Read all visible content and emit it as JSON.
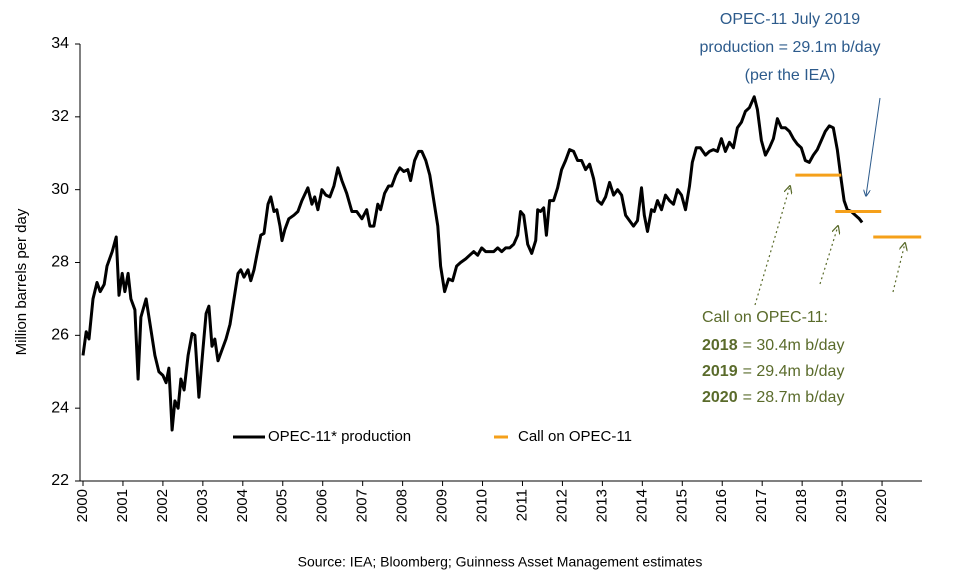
{
  "chart_data": {
    "type": "line",
    "ylabel": "Million barrels per day",
    "source": "Source: IEA; Bloomberg; Guinness Asset Management estimates",
    "xlim": [
      2000,
      2021
    ],
    "xticks": [
      2000,
      2001,
      2002,
      2003,
      2004,
      2005,
      2006,
      2007,
      2008,
      2009,
      2010,
      2011,
      2012,
      2013,
      2014,
      2015,
      2016,
      2017,
      2018,
      2019,
      2020
    ],
    "ylim": [
      22,
      34
    ],
    "yticks": [
      22,
      24,
      26,
      28,
      30,
      32,
      34
    ],
    "legend": "lower center",
    "series": [
      {
        "name": "OPEC-11* production",
        "color": "#000000",
        "x": [
          2000,
          2000.08,
          2000.15,
          2000.25,
          2000.35,
          2000.43,
          2000.53,
          2000.6,
          2000.73,
          2000.83,
          2000.9,
          2000.98,
          2001.05,
          2001.13,
          2001.2,
          2001.3,
          2001.38,
          2001.45,
          2001.58,
          2001.68,
          2001.8,
          2001.9,
          2002,
          2002.08,
          2002.15,
          2002.23,
          2002.3,
          2002.38,
          2002.45,
          2002.53,
          2002.63,
          2002.73,
          2002.8,
          2002.9,
          2003,
          2003.08,
          2003.15,
          2003.23,
          2003.3,
          2003.38,
          2003.48,
          2003.58,
          2003.68,
          2003.78,
          2003.88,
          2003.95,
          2004.03,
          2004.13,
          2004.2,
          2004.28,
          2004.35,
          2004.45,
          2004.53,
          2004.58,
          2004.63,
          2004.7,
          2004.78,
          2004.85,
          2004.93,
          2004.98,
          2005.05,
          2005.15,
          2005.28,
          2005.38,
          2005.48,
          2005.63,
          2005.73,
          2005.8,
          2005.88,
          2005.98,
          2006.08,
          2006.18,
          2006.28,
          2006.38,
          2006.48,
          2006.6,
          2006.73,
          2006.85,
          2006.98,
          2007.1,
          2007.18,
          2007.28,
          2007.38,
          2007.45,
          2007.55,
          2007.65,
          2007.73,
          2007.83,
          2007.93,
          2008.03,
          2008.13,
          2008.2,
          2008.3,
          2008.4,
          2008.48,
          2008.58,
          2008.68,
          2008.78,
          2008.88,
          2008.95,
          2009.05,
          2009.15,
          2009.25,
          2009.35,
          2009.45,
          2009.58,
          2009.68,
          2009.78,
          2009.88,
          2009.98,
          2010.08,
          2010.18,
          2010.28,
          2010.38,
          2010.48,
          2010.58,
          2010.68,
          2010.78,
          2010.88,
          2010.95,
          2011.03,
          2011.13,
          2011.23,
          2011.33,
          2011.38,
          2011.45,
          2011.53,
          2011.6,
          2011.68,
          2011.78,
          2011.88,
          2011.98,
          2012.08,
          2012.18,
          2012.28,
          2012.38,
          2012.48,
          2012.58,
          2012.68,
          2012.78,
          2012.88,
          2012.98,
          2013.08,
          2013.18,
          2013.28,
          2013.38,
          2013.48,
          2013.58,
          2013.68,
          2013.78,
          2013.88,
          2013.98,
          2014.05,
          2014.13,
          2014.23,
          2014.3,
          2014.38,
          2014.48,
          2014.58,
          2014.68,
          2014.78,
          2014.88,
          2014.98,
          2015.08,
          2015.18,
          2015.25,
          2015.35,
          2015.45,
          2015.58,
          2015.68,
          2015.78,
          2015.88,
          2015.98,
          2016.08,
          2016.18,
          2016.28,
          2016.38,
          2016.48,
          2016.58,
          2016.68,
          2016.8,
          2016.88,
          2016.98,
          2017.08,
          2017.18,
          2017.28,
          2017.38,
          2017.48,
          2017.58,
          2017.68,
          2017.78,
          2017.88,
          2017.98,
          2018.08,
          2018.18,
          2018.28,
          2018.38,
          2018.48,
          2018.58,
          2018.68,
          2018.78,
          2018.88,
          2018.98,
          2019.05,
          2019.13,
          2019.23,
          2019.33,
          2019.43,
          2019.5
        ],
        "values": [
          25.45,
          26.1,
          25.9,
          27.0,
          27.45,
          27.2,
          27.4,
          27.9,
          28.3,
          28.7,
          27.1,
          27.7,
          27.2,
          27.7,
          27.0,
          26.7,
          24.8,
          26.5,
          27.0,
          26.3,
          25.45,
          25.0,
          24.9,
          24.7,
          25.1,
          23.4,
          24.2,
          24.0,
          24.8,
          24.5,
          25.45,
          26.05,
          26.0,
          24.3,
          25.6,
          26.6,
          26.8,
          25.7,
          25.9,
          25.3,
          25.6,
          25.9,
          26.3,
          27.0,
          27.7,
          27.8,
          27.6,
          27.8,
          27.5,
          27.8,
          28.2,
          28.75,
          28.8,
          29.2,
          29.6,
          29.8,
          29.4,
          29.45,
          29.0,
          28.6,
          28.9,
          29.2,
          29.3,
          29.4,
          29.7,
          30.05,
          29.6,
          29.8,
          29.45,
          30.0,
          29.85,
          29.8,
          30.1,
          30.6,
          30.25,
          29.9,
          29.4,
          29.4,
          29.2,
          29.45,
          29.0,
          29.0,
          29.6,
          29.45,
          29.9,
          30.1,
          30.1,
          30.4,
          30.6,
          30.5,
          30.55,
          30.25,
          30.8,
          31.05,
          31.05,
          30.8,
          30.4,
          29.7,
          29.0,
          27.9,
          27.2,
          27.55,
          27.5,
          27.9,
          28.0,
          28.1,
          28.2,
          28.3,
          28.2,
          28.4,
          28.3,
          28.3,
          28.3,
          28.4,
          28.3,
          28.4,
          28.4,
          28.5,
          28.75,
          29.4,
          29.3,
          28.5,
          28.25,
          28.6,
          29.45,
          29.4,
          29.5,
          28.75,
          29.7,
          29.7,
          30.05,
          30.55,
          30.8,
          31.1,
          31.05,
          30.8,
          30.8,
          30.55,
          30.7,
          30.3,
          29.7,
          29.6,
          29.8,
          30.2,
          29.85,
          30.0,
          29.85,
          29.3,
          29.15,
          29.0,
          29.15,
          30.05,
          29.3,
          28.85,
          29.45,
          29.4,
          29.7,
          29.45,
          29.85,
          29.7,
          29.6,
          30.0,
          29.85,
          29.45,
          30.1,
          30.75,
          31.15,
          31.15,
          30.95,
          31.05,
          31.1,
          31.05,
          31.4,
          31.05,
          31.3,
          31.15,
          31.7,
          31.85,
          32.15,
          32.25,
          32.55,
          32.2,
          31.35,
          30.95,
          31.15,
          31.4,
          31.95,
          31.7,
          31.7,
          31.6,
          31.4,
          31.25,
          31.15,
          30.8,
          30.75,
          30.95,
          31.1,
          31.35,
          31.6,
          31.75,
          31.7,
          31.1,
          30.25,
          29.7,
          29.45,
          29.4,
          29.3,
          29.2,
          29.1
        ]
      },
      {
        "name": "Call on OPEC-11",
        "color": "#f5a01a",
        "x_start": [
          2017.83,
          2018.83,
          2019.78
        ],
        "x_end": [
          2018.98,
          2019.98,
          2020.98
        ],
        "values": [
          30.4,
          29.4,
          28.7
        ]
      }
    ],
    "note": [
      "OPEC-11 July 2019",
      "production = 29.1m b/day",
      "(per the IEA)"
    ],
    "call_note": {
      "heading": "Call on OPEC-11:",
      "lines": [
        {
          "year": "2018",
          "text": "= 30.4m b/day"
        },
        {
          "year": "2019",
          "text": "= 29.4m b/day"
        },
        {
          "year": "2020",
          "text": "= 28.7m b/day"
        }
      ]
    }
  }
}
